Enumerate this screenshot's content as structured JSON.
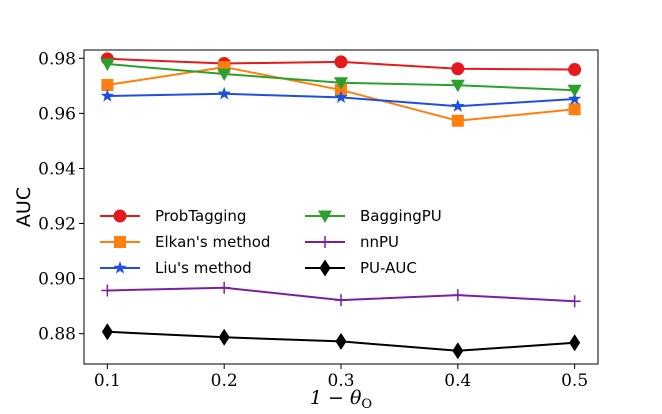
{
  "chart_data": {
    "type": "line",
    "title": "",
    "xlabel": "1 − θ",
    "xlabel_sub": "O",
    "ylabel": "AUC",
    "x": [
      0.1,
      0.2,
      0.3,
      0.4,
      0.5
    ],
    "xlim": [
      0.08,
      0.52
    ],
    "ylim": [
      0.869,
      0.983
    ],
    "xticks": [
      "0.1",
      "0.2",
      "0.3",
      "0.4",
      "0.5"
    ],
    "yticks": [
      "0.88",
      "0.90",
      "0.92",
      "0.94",
      "0.96",
      "0.98"
    ],
    "ytick_values": [
      0.88,
      0.9,
      0.92,
      0.94,
      0.96,
      0.98
    ],
    "grid": false,
    "legend_position": "lower-left",
    "series": [
      {
        "name": "ProbTagging",
        "color": "#e41a1c",
        "marker": "circle",
        "values": [
          0.9798,
          0.9781,
          0.9787,
          0.9762,
          0.9759
        ]
      },
      {
        "name": "Elkan's method",
        "color": "#ff7f0e",
        "marker": "square",
        "values": [
          0.9703,
          0.9768,
          0.9685,
          0.9573,
          0.9615
        ]
      },
      {
        "name": "Liu's method",
        "color": "#1f4fe0",
        "marker": "star",
        "values": [
          0.9663,
          0.9671,
          0.9658,
          0.9626,
          0.9652
        ]
      },
      {
        "name": "BaggingPU",
        "color": "#2ca02c",
        "marker": "triangle-down",
        "values": [
          0.9779,
          0.9743,
          0.9711,
          0.9702,
          0.9684
        ]
      },
      {
        "name": "nnPU",
        "color": "#7b1fa2",
        "marker": "plus",
        "values": [
          0.8957,
          0.8967,
          0.8922,
          0.894,
          0.8918
        ]
      },
      {
        "name": "PU-AUC",
        "color": "#000000",
        "marker": "diamond",
        "values": [
          0.8807,
          0.8787,
          0.8772,
          0.8738,
          0.8767
        ]
      }
    ]
  }
}
